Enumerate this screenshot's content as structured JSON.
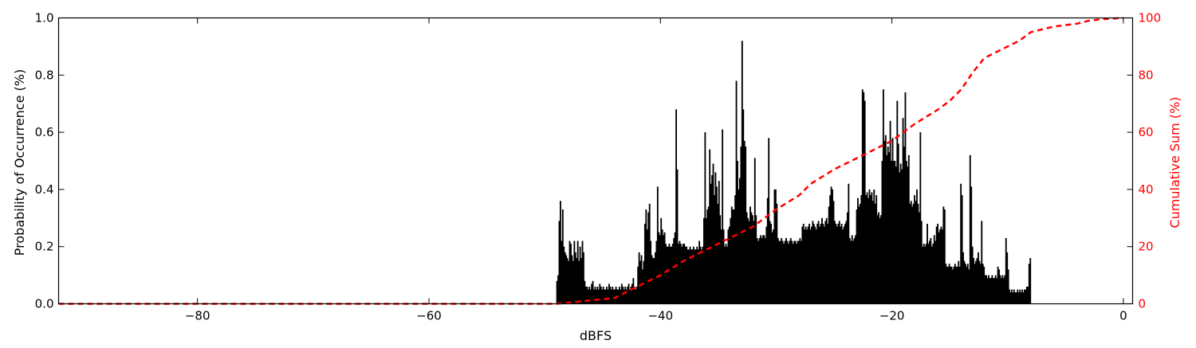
{
  "chart_data": {
    "type": "bar",
    "title": "",
    "xlabel": "dBFS",
    "ylabel": "Probability of Occurrence (%)",
    "y2label": "Cumulative Sum (%)",
    "xlim": [
      -92,
      0.8
    ],
    "ylim": [
      0,
      1.0
    ],
    "y2lim": [
      0,
      100
    ],
    "x_ticks": [
      -80,
      -60,
      -40,
      -20,
      0
    ],
    "y_ticks": [
      0.0,
      0.2,
      0.4,
      0.6,
      0.8,
      1.0
    ],
    "y2_ticks": [
      0,
      20,
      40,
      60,
      80,
      100
    ],
    "grid": false,
    "bar_color": "#000000",
    "line_color": "#ff0000",
    "histogram": {
      "bin_width": 0.1,
      "segments": [
        {
          "range": [
            -49.0,
            -48.2
          ],
          "values": [
            0.08,
            0.1,
            0.29,
            0.36,
            0.22,
            0.33,
            0.2,
            0.18
          ]
        },
        {
          "range": [
            -48.2,
            -46.6
          ],
          "values": [
            0.17,
            0.16,
            0.15,
            0.22,
            0.21,
            0.17,
            0.15,
            0.22,
            0.18,
            0.16,
            0.22,
            0.15,
            0.2,
            0.16,
            0.22,
            0.18
          ]
        },
        {
          "range": [
            -46.6,
            -43.0
          ],
          "values": [
            0.08,
            0.06,
            0.06,
            0.05,
            0.06,
            0.05,
            0.07,
            0.08,
            0.05,
            0.06,
            0.05,
            0.06,
            0.05,
            0.07,
            0.06,
            0.05,
            0.06,
            0.05,
            0.05,
            0.06,
            0.05,
            0.07,
            0.06,
            0.05,
            0.06,
            0.05,
            0.05,
            0.06,
            0.05,
            0.05,
            0.06,
            0.05,
            0.07,
            0.06,
            0.05,
            0.06
          ]
        },
        {
          "range": [
            -43.0,
            -41.6
          ],
          "values": [
            0.05,
            0.06,
            0.07,
            0.05,
            0.06,
            0.07,
            0.09,
            0.06,
            0.05,
            0.06,
            0.13,
            0.18,
            0.15,
            0.17
          ]
        },
        {
          "range": [
            -41.6,
            -40.0
          ],
          "values": [
            0.12,
            0.15,
            0.28,
            0.33,
            0.26,
            0.32,
            0.35,
            0.22,
            0.17,
            0.16,
            0.16,
            0.18,
            0.22,
            0.41,
            0.25,
            0.24
          ]
        },
        {
          "range": [
            -40.0,
            -37.0
          ],
          "values": [
            0.3,
            0.26,
            0.24,
            0.25,
            0.21,
            0.2,
            0.2,
            0.21,
            0.2,
            0.2,
            0.21,
            0.23,
            0.25,
            0.68,
            0.47,
            0.21,
            0.22,
            0.21,
            0.2,
            0.21,
            0.21,
            0.2,
            0.2,
            0.19,
            0.19,
            0.2,
            0.19,
            0.19,
            0.2,
            0.19
          ]
        },
        {
          "range": [
            -37.0,
            -34.2
          ],
          "values": [
            0.19,
            0.2,
            0.19,
            0.22,
            0.2,
            0.19,
            0.2,
            0.3,
            0.6,
            0.3,
            0.33,
            0.34,
            0.54,
            0.42,
            0.45,
            0.49,
            0.38,
            0.46,
            0.41,
            0.35,
            0.43,
            0.31,
            0.26,
            0.61,
            0.26,
            0.2,
            0.21,
            0.2
          ]
        },
        {
          "range": [
            -34.2,
            -31.0
          ],
          "values": [
            0.26,
            0.27,
            0.3,
            0.34,
            0.33,
            0.33,
            0.38,
            0.78,
            0.5,
            0.4,
            0.44,
            0.55,
            0.92,
            0.68,
            0.57,
            0.55,
            0.32,
            0.3,
            0.29,
            0.34,
            0.32,
            0.31,
            0.29,
            0.51,
            0.31,
            0.23,
            0.22,
            0.23,
            0.24,
            0.23,
            0.24,
            0.24
          ]
        },
        {
          "range": [
            -31.0,
            -27.0
          ],
          "values": [
            0.23,
            0.27,
            0.37,
            0.58,
            0.29,
            0.28,
            0.25,
            0.26,
            0.4,
            0.4,
            0.35,
            0.23,
            0.22,
            0.22,
            0.23,
            0.22,
            0.21,
            0.22,
            0.23,
            0.22,
            0.21,
            0.22,
            0.23,
            0.22,
            0.21,
            0.22,
            0.22,
            0.21,
            0.22,
            0.22,
            0.23,
            0.22,
            0.27,
            0.28,
            0.26,
            0.27,
            0.26,
            0.27,
            0.28,
            0.26
          ]
        },
        {
          "range": [
            -27.0,
            -23.0
          ],
          "values": [
            0.27,
            0.29,
            0.28,
            0.27,
            0.26,
            0.28,
            0.29,
            0.27,
            0.28,
            0.3,
            0.28,
            0.27,
            0.29,
            0.3,
            0.28,
            0.34,
            0.38,
            0.41,
            0.4,
            0.36,
            0.29,
            0.28,
            0.27,
            0.28,
            0.29,
            0.27,
            0.28,
            0.26,
            0.27,
            0.28,
            0.29,
            0.32,
            0.42,
            0.23,
            0.22,
            0.24,
            0.22,
            0.23,
            0.24,
            0.33
          ]
        },
        {
          "range": [
            -23.0,
            -19.6
          ],
          "values": [
            0.37,
            0.34,
            0.35,
            0.38,
            0.75,
            0.74,
            0.71,
            0.38,
            0.39,
            0.37,
            0.4,
            0.38,
            0.39,
            0.36,
            0.4,
            0.35,
            0.38,
            0.31,
            0.32,
            0.3,
            0.31,
            0.5,
            0.75,
            0.57,
            0.59,
            0.52,
            0.55,
            0.53,
            0.64,
            0.5,
            0.58,
            0.5,
            0.5,
            0.48
          ]
        },
        {
          "range": [
            -19.6,
            -16.0
          ],
          "values": [
            0.71,
            0.56,
            0.46,
            0.49,
            0.47,
            0.65,
            0.55,
            0.74,
            0.5,
            0.48,
            0.52,
            0.35,
            0.36,
            0.34,
            0.35,
            0.38,
            0.36,
            0.4,
            0.35,
            0.32,
            0.6,
            0.29,
            0.2,
            0.21,
            0.2,
            0.21,
            0.28,
            0.21,
            0.22,
            0.23,
            0.2,
            0.21,
            0.24,
            0.22,
            0.27,
            0.28
          ]
        },
        {
          "range": [
            -16.0,
            -13.0
          ],
          "values": [
            0.25,
            0.26,
            0.27,
            0.26,
            0.34,
            0.33,
            0.14,
            0.13,
            0.13,
            0.14,
            0.13,
            0.13,
            0.12,
            0.13,
            0.14,
            0.13,
            0.13,
            0.15,
            0.13,
            0.42,
            0.38,
            0.18,
            0.15,
            0.14,
            0.13,
            0.14,
            0.12,
            0.52,
            0.41,
            0.2
          ]
        },
        {
          "range": [
            -13.0,
            -10.0
          ],
          "values": [
            0.16,
            0.14,
            0.15,
            0.16,
            0.18,
            0.15,
            0.14,
            0.29,
            0.14,
            0.13,
            0.1,
            0.1,
            0.09,
            0.1,
            0.09,
            0.09,
            0.1,
            0.09,
            0.09,
            0.1,
            0.09,
            0.13,
            0.12,
            0.1,
            0.09,
            0.1,
            0.09,
            0.1,
            0.23,
            0.18
          ]
        },
        {
          "range": [
            -10.0,
            -8.0
          ],
          "values": [
            0.12,
            0.05,
            0.04,
            0.05,
            0.04,
            0.05,
            0.04,
            0.04,
            0.05,
            0.04,
            0.05,
            0.04,
            0.05,
            0.04,
            0.05,
            0.05,
            0.06,
            0.06,
            0.14,
            0.16
          ]
        }
      ]
    },
    "cumulative_line": {
      "style": "dashed",
      "x": [
        -92,
        -49,
        -44,
        -42,
        -40,
        -38,
        -35,
        -32,
        -30,
        -28,
        -27,
        -25,
        -23,
        -20,
        -18,
        -16,
        -15,
        -14,
        -13,
        -12,
        -10,
        -9,
        -8,
        -6,
        -4,
        -3,
        -2,
        0
      ],
      "y": [
        0,
        0,
        2,
        6,
        10,
        15,
        21,
        27,
        33,
        38,
        42,
        47,
        51,
        57,
        63,
        68,
        71,
        75,
        81,
        86,
        90,
        92,
        95,
        97,
        98,
        99,
        99.5,
        100
      ]
    }
  }
}
